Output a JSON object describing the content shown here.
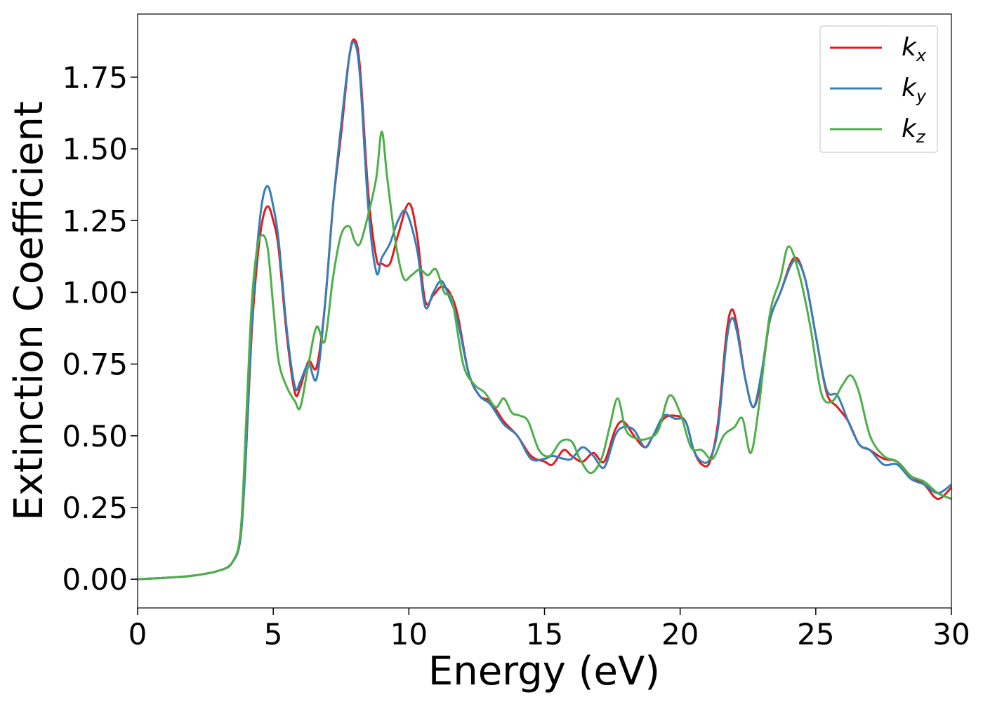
{
  "chart_data": {
    "type": "line",
    "xlabel": "Energy (eV)",
    "ylabel": "Extinction Coefficient",
    "xlim": [
      0,
      30
    ],
    "ylim": [
      -0.1,
      1.97
    ],
    "xticks": [
      "0",
      "5",
      "10",
      "15",
      "20",
      "25",
      "30"
    ],
    "yticks": [
      "0.00",
      "0.25",
      "0.50",
      "0.75",
      "1.00",
      "1.25",
      "1.50",
      "1.75"
    ],
    "grid": false,
    "legend_position": "top-right",
    "series": [
      {
        "name": "k",
        "subscript": "x",
        "color": "#e41a1c",
        "x": [
          0,
          1,
          2,
          3,
          3.5,
          3.8,
          4.0,
          4.2,
          4.4,
          4.6,
          4.8,
          5.0,
          5.2,
          5.5,
          5.8,
          6.0,
          6.3,
          6.6,
          6.9,
          7.2,
          7.5,
          7.8,
          8.0,
          8.2,
          8.5,
          8.8,
          9.0,
          9.3,
          9.6,
          10.0,
          10.3,
          10.6,
          10.9,
          11.2,
          11.5,
          11.8,
          12.2,
          12.6,
          13.0,
          13.5,
          14.0,
          14.5,
          15.0,
          15.3,
          15.7,
          16.0,
          16.4,
          16.8,
          17.2,
          17.6,
          17.9,
          18.3,
          18.7,
          19.0,
          19.4,
          19.8,
          20.2,
          20.5,
          20.8,
          21.1,
          21.4,
          21.7,
          21.9,
          22.1,
          22.4,
          22.7,
          23.0,
          23.3,
          23.7,
          24.2,
          24.6,
          25.0,
          25.4,
          25.8,
          26.2,
          26.6,
          27.0,
          27.5,
          28.0,
          28.5,
          29.0,
          29.5,
          30.0
        ],
        "y": [
          0.0,
          0.005,
          0.012,
          0.03,
          0.06,
          0.15,
          0.45,
          0.85,
          1.1,
          1.25,
          1.3,
          1.25,
          1.15,
          0.85,
          0.65,
          0.67,
          0.76,
          0.74,
          0.95,
          1.3,
          1.55,
          1.82,
          1.88,
          1.78,
          1.35,
          1.12,
          1.1,
          1.1,
          1.2,
          1.31,
          1.2,
          0.97,
          0.99,
          1.02,
          1.0,
          0.92,
          0.72,
          0.64,
          0.62,
          0.55,
          0.5,
          0.43,
          0.41,
          0.4,
          0.45,
          0.43,
          0.41,
          0.44,
          0.41,
          0.52,
          0.55,
          0.5,
          0.46,
          0.5,
          0.56,
          0.57,
          0.55,
          0.45,
          0.4,
          0.41,
          0.55,
          0.85,
          0.94,
          0.88,
          0.7,
          0.6,
          0.7,
          0.9,
          1.0,
          1.12,
          1.05,
          0.85,
          0.65,
          0.6,
          0.55,
          0.47,
          0.45,
          0.42,
          0.41,
          0.36,
          0.33,
          0.28,
          0.32
        ]
      },
      {
        "name": "k",
        "subscript": "y",
        "color": "#377eb8",
        "x": [
          0,
          1,
          2,
          3,
          3.5,
          3.8,
          4.0,
          4.2,
          4.4,
          4.6,
          4.8,
          5.0,
          5.2,
          5.5,
          5.8,
          6.0,
          6.3,
          6.6,
          6.9,
          7.2,
          7.5,
          7.8,
          8.0,
          8.2,
          8.5,
          8.8,
          9.0,
          9.3,
          9.6,
          9.9,
          10.3,
          10.6,
          10.9,
          11.2,
          11.5,
          11.8,
          12.2,
          12.6,
          13.0,
          13.5,
          14.0,
          14.5,
          15.0,
          15.3,
          15.7,
          16.0,
          16.4,
          16.8,
          17.2,
          17.6,
          17.9,
          18.3,
          18.7,
          19.0,
          19.4,
          19.8,
          20.2,
          20.5,
          20.8,
          21.1,
          21.4,
          21.7,
          21.9,
          22.1,
          22.4,
          22.7,
          23.0,
          23.3,
          23.7,
          24.2,
          24.6,
          25.0,
          25.4,
          25.8,
          26.2,
          26.6,
          27.0,
          27.5,
          28.0,
          28.5,
          29.0,
          29.5,
          30.0
        ],
        "y": [
          0.0,
          0.005,
          0.012,
          0.03,
          0.06,
          0.15,
          0.45,
          0.88,
          1.15,
          1.32,
          1.37,
          1.3,
          1.18,
          0.87,
          0.67,
          0.69,
          0.75,
          0.7,
          0.95,
          1.3,
          1.58,
          1.82,
          1.87,
          1.75,
          1.3,
          1.07,
          1.12,
          1.17,
          1.25,
          1.28,
          1.15,
          0.95,
          1.0,
          1.04,
          0.98,
          0.9,
          0.72,
          0.64,
          0.61,
          0.54,
          0.5,
          0.42,
          0.42,
          0.43,
          0.42,
          0.42,
          0.46,
          0.43,
          0.39,
          0.5,
          0.53,
          0.52,
          0.46,
          0.5,
          0.57,
          0.56,
          0.55,
          0.45,
          0.41,
          0.42,
          0.53,
          0.82,
          0.91,
          0.86,
          0.7,
          0.6,
          0.72,
          0.9,
          1.0,
          1.11,
          1.05,
          0.85,
          0.66,
          0.64,
          0.55,
          0.47,
          0.45,
          0.4,
          0.4,
          0.35,
          0.33,
          0.3,
          0.33
        ]
      },
      {
        "name": "k",
        "subscript": "z",
        "color": "#4daf4a",
        "x": [
          0,
          1,
          2,
          3,
          3.5,
          3.8,
          4.0,
          4.2,
          4.4,
          4.6,
          4.8,
          5.0,
          5.2,
          5.5,
          5.8,
          6.0,
          6.3,
          6.6,
          6.9,
          7.2,
          7.5,
          7.8,
          8.0,
          8.2,
          8.5,
          8.8,
          9.0,
          9.2,
          9.5,
          9.8,
          10.1,
          10.4,
          10.7,
          11.0,
          11.3,
          11.6,
          12.0,
          12.4,
          12.8,
          13.2,
          13.5,
          13.8,
          14.1,
          14.4,
          14.8,
          15.2,
          15.6,
          16.0,
          16.3,
          16.7,
          17.1,
          17.4,
          17.7,
          18.0,
          18.4,
          18.8,
          19.2,
          19.6,
          20.0,
          20.4,
          20.8,
          21.2,
          21.6,
          22.0,
          22.3,
          22.6,
          22.9,
          23.3,
          23.7,
          24.0,
          24.4,
          24.8,
          25.2,
          25.6,
          26.0,
          26.3,
          26.6,
          27.0,
          27.5,
          28.0,
          28.5,
          29.0,
          29.5,
          30.0
        ],
        "y": [
          0.0,
          0.005,
          0.012,
          0.03,
          0.06,
          0.17,
          0.55,
          0.95,
          1.15,
          1.2,
          1.15,
          0.95,
          0.76,
          0.67,
          0.62,
          0.6,
          0.75,
          0.88,
          0.83,
          1.05,
          1.2,
          1.23,
          1.18,
          1.17,
          1.27,
          1.4,
          1.56,
          1.4,
          1.18,
          1.05,
          1.06,
          1.08,
          1.06,
          1.08,
          1.0,
          0.97,
          0.75,
          0.68,
          0.65,
          0.6,
          0.63,
          0.58,
          0.57,
          0.55,
          0.45,
          0.43,
          0.48,
          0.48,
          0.42,
          0.37,
          0.42,
          0.53,
          0.63,
          0.52,
          0.49,
          0.49,
          0.52,
          0.64,
          0.58,
          0.46,
          0.45,
          0.42,
          0.5,
          0.53,
          0.56,
          0.44,
          0.6,
          0.92,
          1.05,
          1.16,
          1.06,
          0.88,
          0.65,
          0.62,
          0.68,
          0.71,
          0.65,
          0.5,
          0.43,
          0.41,
          0.36,
          0.34,
          0.3,
          0.28
        ]
      }
    ]
  }
}
